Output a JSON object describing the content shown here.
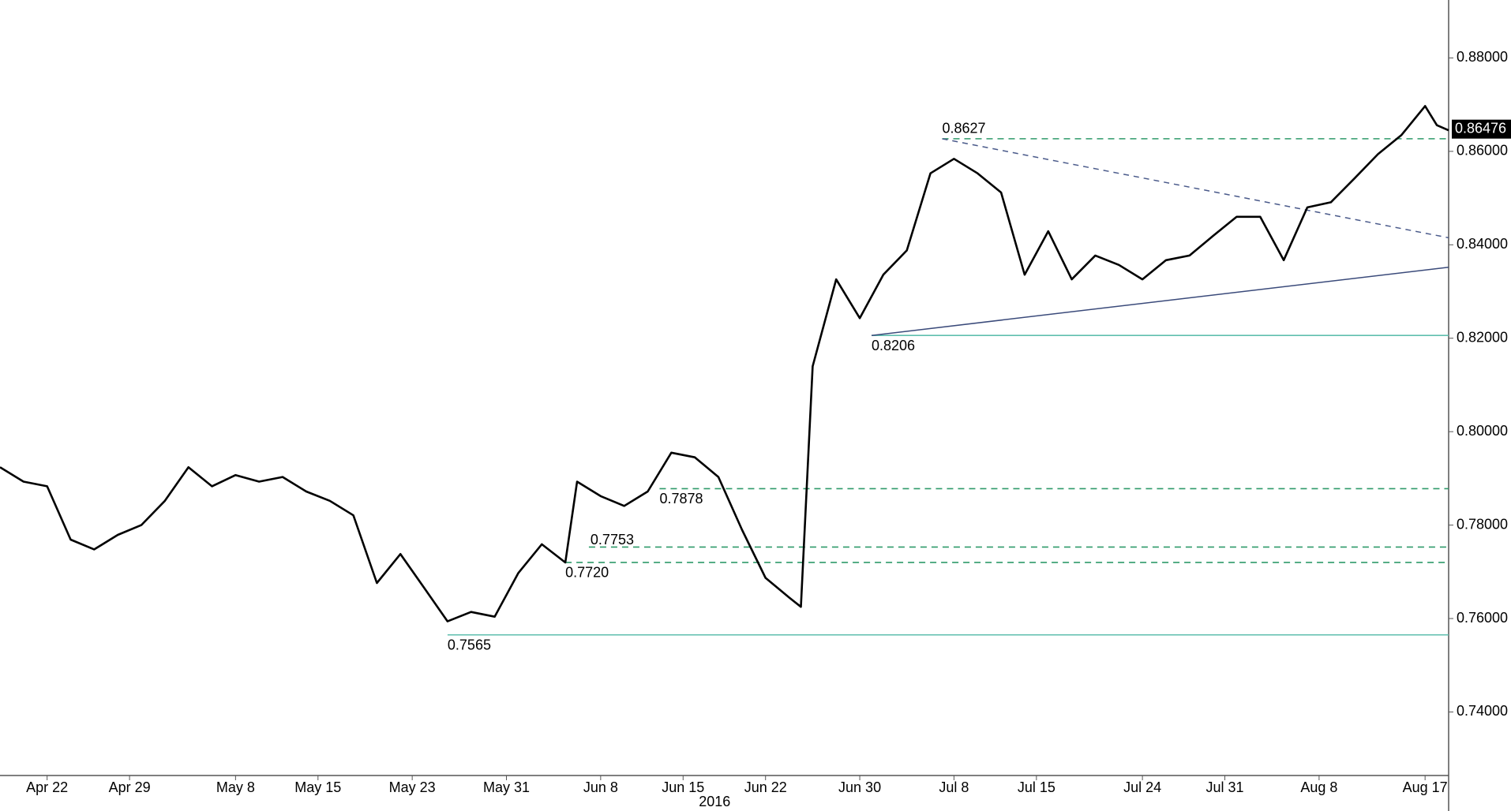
{
  "chart_data": {
    "type": "line",
    "x": [
      "2016-04-18",
      "2016-04-20",
      "2016-04-22",
      "2016-04-24",
      "2016-04-26",
      "2016-04-28",
      "2016-04-30",
      "2016-05-02",
      "2016-05-04",
      "2016-05-06",
      "2016-05-08",
      "2016-05-10",
      "2016-05-12",
      "2016-05-14",
      "2016-05-16",
      "2016-05-18",
      "2016-05-20",
      "2016-05-22",
      "2016-05-24",
      "2016-05-26",
      "2016-05-28",
      "2016-05-30",
      "2016-06-01",
      "2016-06-03",
      "2016-06-05",
      "2016-06-06",
      "2016-06-08",
      "2016-06-10",
      "2016-06-12",
      "2016-06-14",
      "2016-06-16",
      "2016-06-18",
      "2016-06-20",
      "2016-06-22",
      "2016-06-23",
      "2016-06-24",
      "2016-06-25",
      "2016-06-26",
      "2016-06-28",
      "2016-06-30",
      "2016-07-02",
      "2016-07-04",
      "2016-07-06",
      "2016-07-08",
      "2016-07-10",
      "2016-07-12",
      "2016-07-14",
      "2016-07-16",
      "2016-07-18",
      "2016-07-20",
      "2016-07-22",
      "2016-07-24",
      "2016-07-26",
      "2016-07-28",
      "2016-07-30",
      "2016-08-01",
      "2016-08-03",
      "2016-08-05",
      "2016-08-07",
      "2016-08-09",
      "2016-08-11",
      "2016-08-13",
      "2016-08-15",
      "2016-08-17",
      "2016-08-18",
      "2016-08-19"
    ],
    "series": [
      {
        "color": "#000000",
        "values": [
          0.7924,
          0.7893,
          0.7883,
          0.7769,
          0.7748,
          0.7779,
          0.78,
          0.7852,
          0.7924,
          0.7883,
          0.7907,
          0.7893,
          0.7903,
          0.7872,
          0.7852,
          0.7821,
          0.7676,
          0.7738,
          0.7666,
          0.7594,
          0.7614,
          0.7604,
          0.7697,
          0.7759,
          0.772,
          0.7893,
          0.7862,
          0.7841,
          0.7872,
          0.7955,
          0.7945,
          0.7903,
          0.779,
          0.7687,
          0.7666,
          0.7645,
          0.7625,
          0.814,
          0.8326,
          0.8243,
          0.8336,
          0.8388,
          0.8553,
          0.8584,
          0.8553,
          0.8512,
          0.8336,
          0.8429,
          0.8326,
          0.8377,
          0.8357,
          0.8326,
          0.8367,
          0.8377,
          0.8419,
          0.846,
          0.846,
          0.8367,
          0.848,
          0.8491,
          0.8542,
          0.8594,
          0.8635,
          0.8697,
          0.8656,
          0.8645
        ]
      }
    ],
    "xlim": [
      "2016-04-18",
      "2016-08-19"
    ],
    "xticks": [
      {
        "value": "2016-04-22",
        "label": "Apr 22"
      },
      {
        "value": "2016-04-29",
        "label": "Apr 29"
      },
      {
        "value": "2016-05-08",
        "label": "May 8"
      },
      {
        "value": "2016-05-15",
        "label": "May 15"
      },
      {
        "value": "2016-05-23",
        "label": "May 23"
      },
      {
        "value": "2016-05-31",
        "label": "May 31"
      },
      {
        "value": "2016-06-08",
        "label": "Jun 8"
      },
      {
        "value": "2016-06-15",
        "label": "Jun 15"
      },
      {
        "value": "2016-06-22",
        "label": "Jun 22"
      },
      {
        "value": "2016-06-30",
        "label": "Jun 30"
      },
      {
        "value": "2016-07-08",
        "label": "Jul 8"
      },
      {
        "value": "2016-07-15",
        "label": "Jul 15"
      },
      {
        "value": "2016-07-24",
        "label": "Jul 24"
      },
      {
        "value": "2016-07-31",
        "label": "Jul 31"
      },
      {
        "value": "2016-08-08",
        "label": "Aug 8"
      },
      {
        "value": "2016-08-17",
        "label": "Aug 17"
      }
    ],
    "year_label": "2016",
    "ylim": [
      0.7264,
      0.8924
    ],
    "yticks": [
      {
        "value": 0.74,
        "label": "0.74000"
      },
      {
        "value": 0.76,
        "label": "0.76000"
      },
      {
        "value": 0.78,
        "label": "0.78000"
      },
      {
        "value": 0.8,
        "label": "0.80000"
      },
      {
        "value": 0.82,
        "label": "0.82000"
      },
      {
        "value": 0.84,
        "label": "0.84000"
      },
      {
        "value": 0.86,
        "label": "0.86000"
      },
      {
        "value": 0.88,
        "label": "0.88000"
      }
    ],
    "last_price": 0.86476,
    "levels": [
      {
        "value": 0.8627,
        "label": "0.8627",
        "start": "2016-07-07",
        "dash": true,
        "color": "#2e9a6a"
      },
      {
        "value": 0.8206,
        "label": "0.8206",
        "start": "2016-07-01",
        "dash": false,
        "color": "#5fbfae"
      },
      {
        "value": 0.7878,
        "label": "0.7878",
        "start": "2016-06-13",
        "dash": true,
        "color": "#2e9a6a"
      },
      {
        "value": 0.7753,
        "label": "0.7753",
        "start": "2016-06-07",
        "dash": true,
        "color": "#2e9a6a"
      },
      {
        "value": 0.772,
        "label": "0.7720",
        "start": "2016-06-05",
        "dash": true,
        "color": "#2e9a6a"
      },
      {
        "value": 0.7565,
        "label": "0.7565",
        "start": "2016-05-26",
        "dash": false,
        "color": "#5fbfae"
      }
    ],
    "trendlines": [
      {
        "x": [
          "2016-07-07",
          "2016-08-19"
        ],
        "y": [
          0.8627,
          0.8415
        ],
        "dash": true,
        "color": "#4a5a8a"
      },
      {
        "x": [
          "2016-07-01",
          "2016-08-19"
        ],
        "y": [
          0.8206,
          0.8352
        ],
        "dash": false,
        "color": "#3a4a7a"
      }
    ]
  }
}
